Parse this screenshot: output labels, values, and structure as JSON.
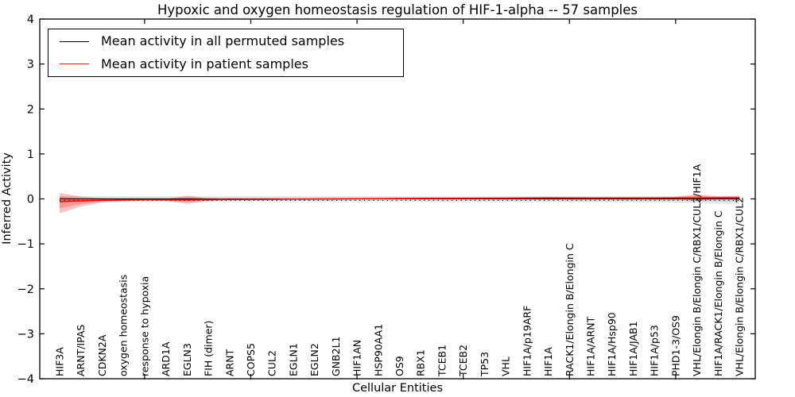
{
  "chart_data": {
    "type": "line",
    "title": "Hypoxic and oxygen homeostasis regulation of HIF-1-alpha -- 57 samples",
    "xlabel": "Cellular Entities",
    "ylabel": "Inferred Activity",
    "ylim": [
      -4,
      4
    ],
    "grid": false,
    "legend": {
      "position": "upper left",
      "entries": [
        {
          "label": "Mean activity in all permuted samples",
          "color": "#000000"
        },
        {
          "label": "Mean activity in patient samples",
          "color": "#ff0000"
        }
      ]
    },
    "yticks": [
      {
        "label": "4",
        "value": 4
      },
      {
        "label": "3",
        "value": 3
      },
      {
        "label": "2",
        "value": 2
      },
      {
        "label": "1",
        "value": 1
      },
      {
        "label": "0",
        "value": 0
      },
      {
        "label": "−1",
        "value": -1
      },
      {
        "label": "−2",
        "value": -2
      },
      {
        "label": "−3",
        "value": -3
      },
      {
        "label": "−4",
        "value": -4
      }
    ],
    "xtick_category_indices": [
      4,
      9,
      14,
      19,
      24,
      29
    ],
    "categories": [
      "HIF3A",
      "ARNT/IPAS",
      "CDKN2A",
      "oxygen homeostasis",
      "response to hypoxia",
      "ARD1A",
      "EGLN3",
      "FIH (dimer)",
      "ARNT",
      "COPS5",
      "CUL2",
      "EGLN1",
      "EGLN2",
      "GNB2L1",
      "HIF1AN",
      "HSP90AA1",
      "OS9",
      "RBX1",
      "TCEB1",
      "TCEB2",
      "TP53",
      "VHL",
      "HIF1A/p19ARF",
      "HIF1A",
      "RACK1/Elongin B/Elongin C",
      "HIF1A/ARNT",
      "HIF1A/Hsp90",
      "HIF1A/JAB1",
      "HIF1A/p53",
      "PHD1-3/OS9",
      "VHL/Elongin B/Elongin C/RBX1/CUL2/HIF1A",
      "HIF1A/RACK1/Elongin B/Elongin C",
      "VHL/Elongin B/Elongin C/RBX1/CUL2"
    ],
    "series": [
      {
        "name": "Mean activity in all permuted samples",
        "color": "#000000",
        "band_color": "#000000",
        "values": [
          0,
          0,
          0,
          0,
          0,
          0,
          0,
          0,
          0,
          0,
          0,
          0,
          0,
          0,
          0,
          0,
          0,
          0,
          0,
          0,
          0,
          0,
          0,
          0,
          0,
          0,
          0,
          0,
          0,
          0,
          0,
          0,
          0
        ],
        "band_top": [
          0.07,
          0.065,
          0.06,
          0.06,
          0.06,
          0.06,
          0.06,
          0.06,
          0.06,
          0.06,
          0.06,
          0.06,
          0.06,
          0.06,
          0.06,
          0.06,
          0.06,
          0.06,
          0.06,
          0.06,
          0.06,
          0.06,
          0.06,
          0.06,
          0.06,
          0.06,
          0.06,
          0.06,
          0.06,
          0.06,
          0.06,
          0.055,
          0.05
        ],
        "band_bottom": [
          -0.08,
          -0.07,
          -0.065,
          -0.065,
          -0.065,
          -0.065,
          -0.065,
          -0.065,
          -0.065,
          -0.065,
          -0.065,
          -0.065,
          -0.065,
          -0.065,
          -0.065,
          -0.065,
          -0.065,
          -0.065,
          -0.07,
          -0.07,
          -0.07,
          -0.07,
          -0.07,
          -0.07,
          -0.075,
          -0.075,
          -0.08,
          -0.08,
          -0.085,
          -0.09,
          -0.1,
          -0.11,
          -0.12
        ]
      },
      {
        "name": "Mean activity in patient samples",
        "color": "#ff0000",
        "band_color": "#ff0000",
        "values": [
          -0.06,
          -0.045,
          -0.03,
          -0.025,
          -0.02,
          -0.02,
          -0.02,
          -0.015,
          -0.012,
          -0.01,
          -0.008,
          -0.005,
          -0.003,
          0,
          0.003,
          0.005,
          0.008,
          0.01,
          0.012,
          0.014,
          0.015,
          0.016,
          0.018,
          0.02,
          0.02,
          0.02,
          0.02,
          0.02,
          0.02,
          0.02,
          0.022,
          0.024,
          0.025
        ],
        "band_top": [
          0.13,
          0.05,
          0.01,
          -0.005,
          -0.008,
          0,
          0.07,
          0.01,
          0.002,
          0.002,
          0.003,
          0.005,
          0.007,
          0.01,
          0.012,
          0.015,
          0.018,
          0.02,
          0.022,
          0.024,
          0.025,
          0.03,
          0.04,
          0.045,
          0.04,
          0.035,
          0.035,
          0.035,
          0.04,
          0.05,
          0.1,
          0.06,
          0.07
        ],
        "band_bottom": [
          -0.32,
          -0.17,
          -0.08,
          -0.05,
          -0.035,
          -0.045,
          -0.11,
          -0.05,
          -0.028,
          -0.024,
          -0.02,
          -0.016,
          -0.013,
          -0.01,
          -0.007,
          -0.005,
          -0.002,
          0,
          0.002,
          0.004,
          0.005,
          0.005,
          0,
          0,
          0.002,
          0.006,
          0.007,
          0.008,
          0.005,
          -0.005,
          -0.04,
          -0.005,
          -0.015
        ]
      }
    ]
  }
}
